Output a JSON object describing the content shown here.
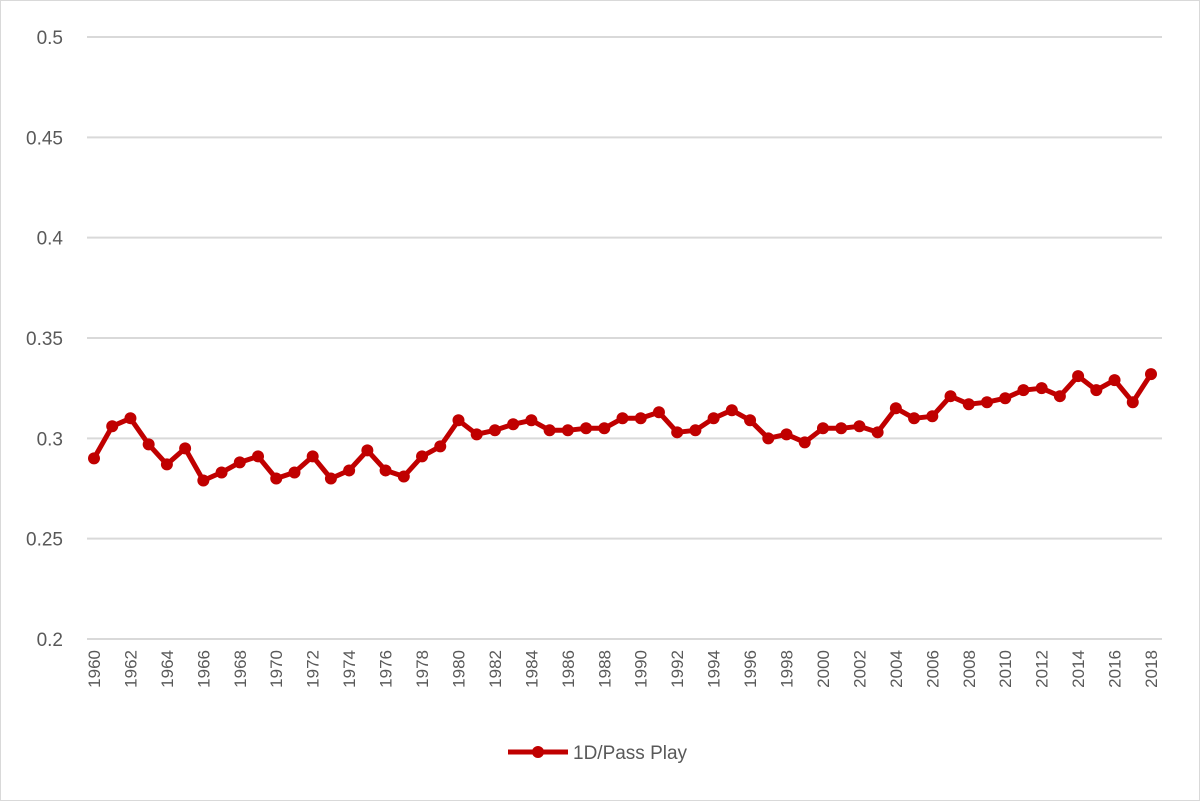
{
  "chart_data": {
    "type": "line",
    "title": "",
    "xlabel": "",
    "ylabel": "",
    "ylim": [
      0.2,
      0.5
    ],
    "yticks": [
      "0.2",
      "0.25",
      "0.3",
      "0.35",
      "0.4",
      "0.45",
      "0.5"
    ],
    "grid": true,
    "legend": "bottom",
    "x": [
      1960,
      1961,
      1962,
      1963,
      1964,
      1965,
      1966,
      1967,
      1968,
      1969,
      1970,
      1971,
      1972,
      1973,
      1974,
      1975,
      1976,
      1977,
      1978,
      1979,
      1980,
      1981,
      1982,
      1983,
      1984,
      1985,
      1986,
      1987,
      1988,
      1989,
      1990,
      1991,
      1992,
      1993,
      1994,
      1995,
      1996,
      1997,
      1998,
      1999,
      2000,
      2001,
      2002,
      2003,
      2004,
      2005,
      2006,
      2007,
      2008,
      2009,
      2010,
      2011,
      2012,
      2013,
      2014,
      2015,
      2016,
      2017,
      2018
    ],
    "xticks": [
      "1960",
      "1962",
      "1964",
      "1966",
      "1968",
      "1970",
      "1972",
      "1974",
      "1976",
      "1978",
      "1980",
      "1982",
      "1984",
      "1986",
      "1988",
      "1990",
      "1992",
      "1994",
      "1996",
      "1998",
      "2000",
      "2002",
      "2004",
      "2006",
      "2008",
      "2010",
      "2012",
      "2014",
      "2016",
      "2018"
    ],
    "series": [
      {
        "name": "1D/Pass Play",
        "color": "#c00000",
        "values": [
          0.29,
          0.306,
          0.31,
          0.297,
          0.287,
          0.295,
          0.279,
          0.283,
          0.288,
          0.291,
          0.28,
          0.283,
          0.291,
          0.28,
          0.284,
          0.294,
          0.284,
          0.281,
          0.291,
          0.296,
          0.309,
          0.302,
          0.304,
          0.307,
          0.309,
          0.304,
          0.304,
          0.305,
          0.305,
          0.31,
          0.31,
          0.313,
          0.303,
          0.304,
          0.31,
          0.314,
          0.309,
          0.3,
          0.302,
          0.298,
          0.305,
          0.305,
          0.306,
          0.303,
          0.315,
          0.31,
          0.311,
          0.321,
          0.317,
          0.318,
          0.32,
          0.324,
          0.325,
          0.321,
          0.331,
          0.324,
          0.329,
          0.318,
          0.332
        ]
      }
    ]
  }
}
